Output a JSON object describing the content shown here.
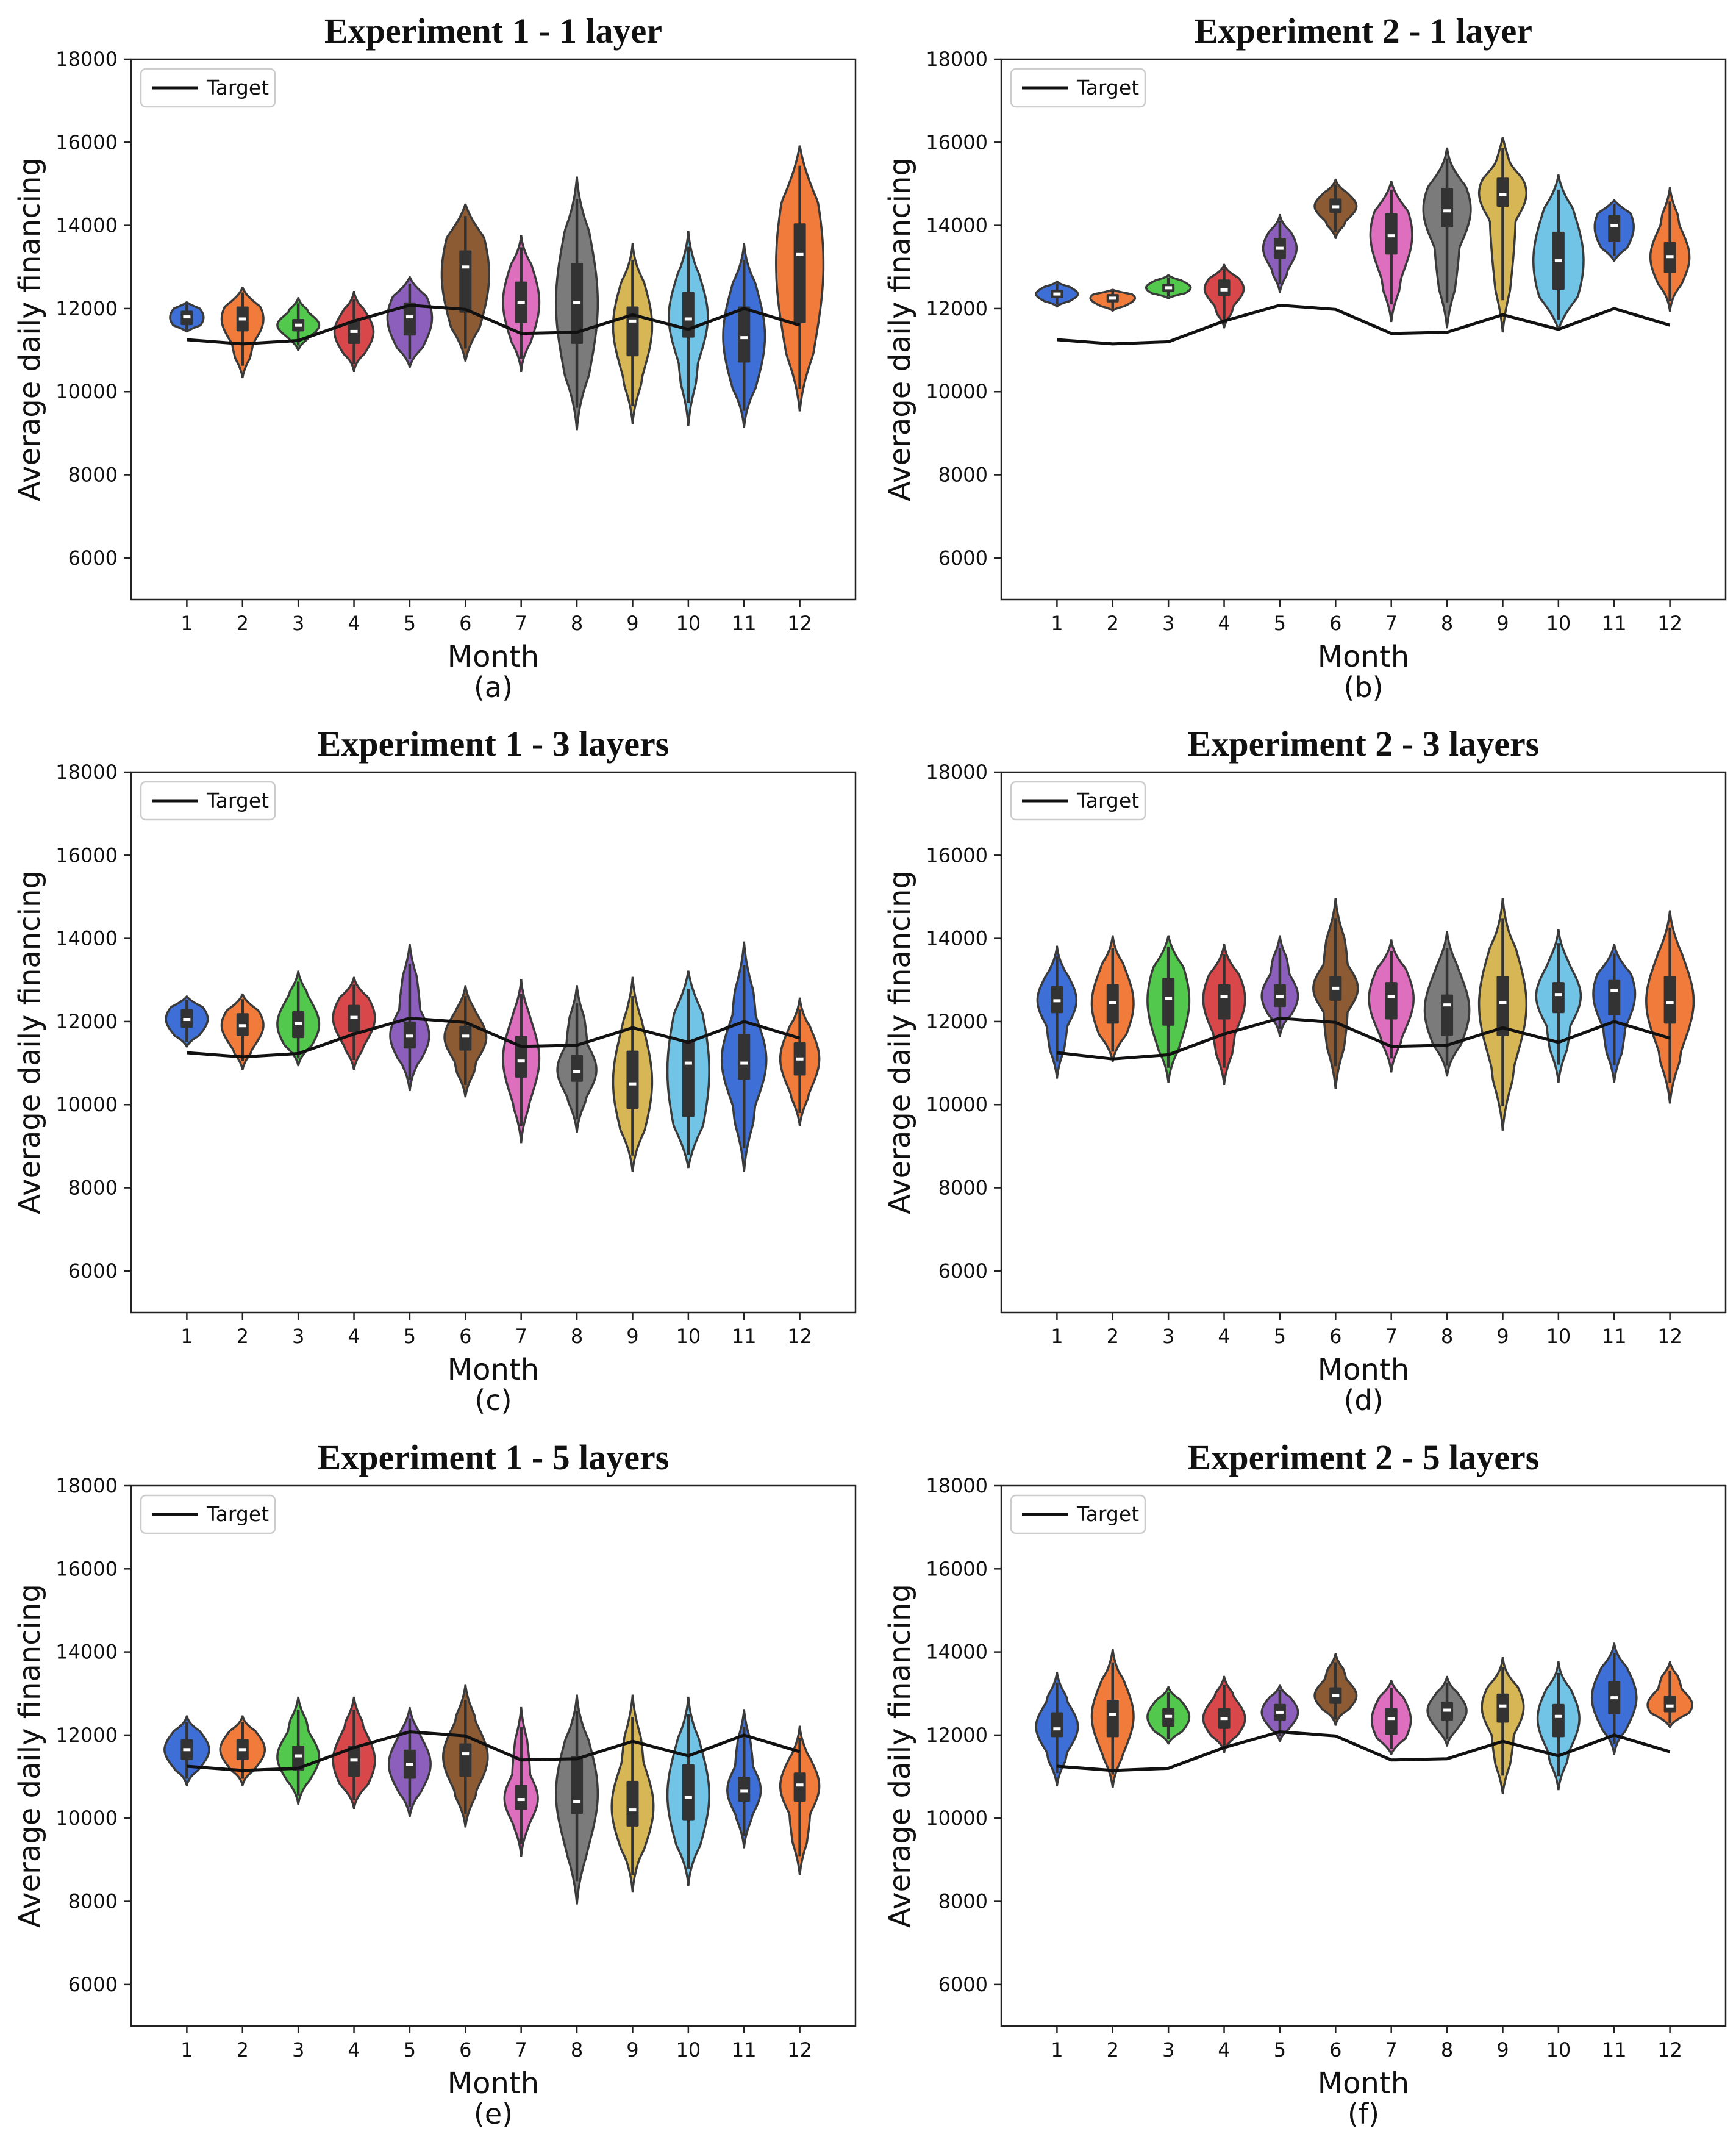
{
  "figure": {
    "months": [
      "1",
      "2",
      "3",
      "4",
      "5",
      "6",
      "7",
      "8",
      "9",
      "10",
      "11",
      "12"
    ],
    "palette": [
      "#3d6fd6",
      "#f07b3a",
      "#52c84c",
      "#d8484b",
      "#8d5fbc",
      "#8c5a33",
      "#dd6fbe",
      "#7b7b7b",
      "#d7b655",
      "#72c4e6",
      "#3d6fd6",
      "#f07b3a"
    ],
    "line_color": "#111111"
  },
  "chart_data": [
    {
      "type": "violin",
      "panel": "(a)",
      "title": "Experiment 1 - 1 layer",
      "xlabel": "Month",
      "ylabel": "Average daily financing",
      "ylim": [
        5000,
        18000
      ],
      "yticks": [
        6000,
        8000,
        10000,
        12000,
        14000,
        16000,
        18000
      ],
      "legend": "Target",
      "target": [
        11250,
        11150,
        11230,
        11700,
        12080,
        11980,
        11400,
        11430,
        11850,
        11500,
        12000,
        11600
      ],
      "violins": [
        {
          "min": 11450,
          "q1": 11600,
          "median": 11800,
          "q3": 11950,
          "max": 12150,
          "width": 0.6
        },
        {
          "min": 10350,
          "q1": 11450,
          "median": 11750,
          "q3": 12050,
          "max": 12500,
          "width": 0.75
        },
        {
          "min": 11000,
          "q1": 11450,
          "median": 11600,
          "q3": 11750,
          "max": 12250,
          "width": 0.75
        },
        {
          "min": 10500,
          "q1": 11150,
          "median": 11450,
          "q3": 11700,
          "max": 12400,
          "width": 0.7
        },
        {
          "min": 10600,
          "q1": 11350,
          "median": 11800,
          "q3": 12150,
          "max": 12750,
          "width": 0.8
        },
        {
          "min": 10750,
          "q1": 11900,
          "median": 13000,
          "q3": 13400,
          "max": 14500,
          "width": 0.85
        },
        {
          "min": 10500,
          "q1": 11650,
          "median": 12150,
          "q3": 12650,
          "max": 13750,
          "width": 0.65
        },
        {
          "min": 9100,
          "q1": 11150,
          "median": 12150,
          "q3": 13100,
          "max": 15150,
          "width": 0.75
        },
        {
          "min": 9250,
          "q1": 10850,
          "median": 11700,
          "q3": 12050,
          "max": 13550,
          "width": 0.7
        },
        {
          "min": 9200,
          "q1": 11300,
          "median": 11750,
          "q3": 12400,
          "max": 13850,
          "width": 0.7
        },
        {
          "min": 9150,
          "q1": 10700,
          "median": 11300,
          "q3": 12050,
          "max": 13550,
          "width": 0.75
        },
        {
          "min": 9550,
          "q1": 11650,
          "median": 13300,
          "q3": 14050,
          "max": 15900,
          "width": 0.85
        }
      ]
    },
    {
      "type": "violin",
      "panel": "(b)",
      "title": "Experiment 2 - 1 layer",
      "xlabel": "Month",
      "ylabel": "Average daily financing",
      "ylim": [
        5000,
        18000
      ],
      "yticks": [
        6000,
        8000,
        10000,
        12000,
        14000,
        16000,
        18000
      ],
      "legend": "Target",
      "target": [
        11250,
        11150,
        11200,
        11700,
        12080,
        11980,
        11400,
        11430,
        11850,
        11500,
        12000,
        11600
      ],
      "violins": [
        {
          "min": 12050,
          "q1": 12250,
          "median": 12350,
          "q3": 12450,
          "max": 12650,
          "width": 0.75
        },
        {
          "min": 11950,
          "q1": 12150,
          "median": 12250,
          "q3": 12350,
          "max": 12450,
          "width": 0.8
        },
        {
          "min": 12250,
          "q1": 12400,
          "median": 12500,
          "q3": 12600,
          "max": 12800,
          "width": 0.8
        },
        {
          "min": 11550,
          "q1": 12300,
          "median": 12450,
          "q3": 12700,
          "max": 13050,
          "width": 0.7
        },
        {
          "min": 12400,
          "q1": 13200,
          "median": 13450,
          "q3": 13700,
          "max": 14250,
          "width": 0.6
        },
        {
          "min": 13700,
          "q1": 14300,
          "median": 14450,
          "q3": 14650,
          "max": 15100,
          "width": 0.75
        },
        {
          "min": 11700,
          "q1": 13300,
          "median": 13750,
          "q3": 14300,
          "max": 15050,
          "width": 0.75
        },
        {
          "min": 11550,
          "q1": 13950,
          "median": 14350,
          "q3": 14900,
          "max": 15850,
          "width": 0.85
        },
        {
          "min": 11450,
          "q1": 14450,
          "median": 14750,
          "q3": 15150,
          "max": 16100,
          "width": 0.85
        },
        {
          "min": 11500,
          "q1": 12450,
          "median": 13150,
          "q3": 13850,
          "max": 15200,
          "width": 0.9
        },
        {
          "min": 13150,
          "q1": 13600,
          "median": 14000,
          "q3": 14250,
          "max": 14600,
          "width": 0.7
        },
        {
          "min": 11950,
          "q1": 12850,
          "median": 13250,
          "q3": 13600,
          "max": 14900,
          "width": 0.7
        }
      ]
    },
    {
      "type": "violin",
      "panel": "(c)",
      "title": "Experiment 1 - 3 layers",
      "xlabel": "Month",
      "ylabel": "Average daily financing",
      "ylim": [
        5000,
        18000
      ],
      "yticks": [
        6000,
        8000,
        10000,
        12000,
        14000,
        16000,
        18000
      ],
      "legend": "Target",
      "target": [
        11250,
        11150,
        11230,
        11700,
        12080,
        11980,
        11400,
        11430,
        11850,
        11500,
        12000,
        11600
      ],
      "violins": [
        {
          "min": 11400,
          "q1": 11850,
          "median": 12050,
          "q3": 12300,
          "max": 12600,
          "width": 0.75
        },
        {
          "min": 10850,
          "q1": 11650,
          "median": 11900,
          "q3": 12200,
          "max": 12650,
          "width": 0.75
        },
        {
          "min": 10950,
          "q1": 11600,
          "median": 11950,
          "q3": 12250,
          "max": 13200,
          "width": 0.75
        },
        {
          "min": 10850,
          "q1": 11750,
          "median": 12100,
          "q3": 12400,
          "max": 13050,
          "width": 0.75
        },
        {
          "min": 10350,
          "q1": 11350,
          "median": 11650,
          "q3": 12000,
          "max": 13850,
          "width": 0.7
        },
        {
          "min": 10200,
          "q1": 11300,
          "median": 11650,
          "q3": 11900,
          "max": 12850,
          "width": 0.75
        },
        {
          "min": 9100,
          "q1": 10650,
          "median": 11050,
          "q3": 11650,
          "max": 13000,
          "width": 0.65
        },
        {
          "min": 9350,
          "q1": 10550,
          "median": 10800,
          "q3": 11200,
          "max": 12850,
          "width": 0.7
        },
        {
          "min": 8400,
          "q1": 9900,
          "median": 10500,
          "q3": 11300,
          "max": 13050,
          "width": 0.7
        },
        {
          "min": 8500,
          "q1": 9700,
          "median": 11000,
          "q3": 11550,
          "max": 13200,
          "width": 0.75
        },
        {
          "min": 8400,
          "q1": 10600,
          "median": 11000,
          "q3": 11700,
          "max": 13900,
          "width": 0.8
        },
        {
          "min": 9500,
          "q1": 10700,
          "median": 11100,
          "q3": 11500,
          "max": 12550,
          "width": 0.7
        }
      ]
    },
    {
      "type": "violin",
      "panel": "(d)",
      "title": "Experiment 2 - 3 layers",
      "xlabel": "Month",
      "ylabel": "Average daily financing",
      "ylim": [
        5000,
        18000
      ],
      "yticks": [
        6000,
        8000,
        10000,
        12000,
        14000,
        16000,
        18000
      ],
      "legend": "Target",
      "target": [
        11250,
        11100,
        11200,
        11700,
        12080,
        11980,
        11400,
        11430,
        11850,
        11500,
        12000,
        11600
      ],
      "violins": [
        {
          "min": 10650,
          "q1": 12200,
          "median": 12500,
          "q3": 12850,
          "max": 13800,
          "width": 0.7
        },
        {
          "min": 11050,
          "q1": 11950,
          "median": 12450,
          "q3": 12900,
          "max": 14050,
          "width": 0.75
        },
        {
          "min": 10550,
          "q1": 11900,
          "median": 12550,
          "q3": 13050,
          "max": 14050,
          "width": 0.75
        },
        {
          "min": 10500,
          "q1": 12050,
          "median": 12600,
          "q3": 12900,
          "max": 13850,
          "width": 0.75
        },
        {
          "min": 11650,
          "q1": 12350,
          "median": 12600,
          "q3": 12900,
          "max": 14050,
          "width": 0.65
        },
        {
          "min": 10400,
          "q1": 12500,
          "median": 12800,
          "q3": 13100,
          "max": 14950,
          "width": 0.8
        },
        {
          "min": 10800,
          "q1": 12050,
          "median": 12600,
          "q3": 12950,
          "max": 13950,
          "width": 0.8
        },
        {
          "min": 10700,
          "q1": 11650,
          "median": 12400,
          "q3": 12650,
          "max": 14150,
          "width": 0.8
        },
        {
          "min": 9400,
          "q1": 11650,
          "median": 12450,
          "q3": 13100,
          "max": 14950,
          "width": 0.85
        },
        {
          "min": 10550,
          "q1": 12200,
          "median": 12650,
          "q3": 12950,
          "max": 14200,
          "width": 0.8
        },
        {
          "min": 10550,
          "q1": 12150,
          "median": 12750,
          "q3": 13000,
          "max": 13850,
          "width": 0.75
        },
        {
          "min": 10050,
          "q1": 11950,
          "median": 12450,
          "q3": 13100,
          "max": 14650,
          "width": 0.85
        }
      ]
    },
    {
      "type": "violin",
      "panel": "(e)",
      "title": "Experiment 1 - 5 layers",
      "xlabel": "Month",
      "ylabel": "Average daily financing",
      "ylim": [
        5000,
        18000
      ],
      "yticks": [
        6000,
        8000,
        10000,
        12000,
        14000,
        16000,
        18000
      ],
      "legend": "Target",
      "target": [
        11250,
        11150,
        11200,
        11700,
        12080,
        11980,
        11400,
        11430,
        11850,
        11500,
        12000,
        11600
      ],
      "violins": [
        {
          "min": 10800,
          "q1": 11400,
          "median": 11650,
          "q3": 11900,
          "max": 12450,
          "width": 0.8
        },
        {
          "min": 10800,
          "q1": 11400,
          "median": 11650,
          "q3": 11900,
          "max": 12450,
          "width": 0.8
        },
        {
          "min": 10350,
          "q1": 11150,
          "median": 11500,
          "q3": 11750,
          "max": 12900,
          "width": 0.75
        },
        {
          "min": 10250,
          "q1": 11000,
          "median": 11400,
          "q3": 11750,
          "max": 12900,
          "width": 0.75
        },
        {
          "min": 10050,
          "q1": 10950,
          "median": 11300,
          "q3": 11650,
          "max": 12650,
          "width": 0.75
        },
        {
          "min": 9800,
          "q1": 11000,
          "median": 11550,
          "q3": 11800,
          "max": 13200,
          "width": 0.8
        },
        {
          "min": 9100,
          "q1": 10200,
          "median": 10450,
          "q3": 10800,
          "max": 12650,
          "width": 0.6
        },
        {
          "min": 7950,
          "q1": 10100,
          "median": 10400,
          "q3": 11500,
          "max": 12950,
          "width": 0.75
        },
        {
          "min": 8250,
          "q1": 9800,
          "median": 10200,
          "q3": 10900,
          "max": 12950,
          "width": 0.75
        },
        {
          "min": 8400,
          "q1": 9950,
          "median": 10500,
          "q3": 11300,
          "max": 12900,
          "width": 0.75
        },
        {
          "min": 9300,
          "q1": 10400,
          "median": 10650,
          "q3": 11000,
          "max": 12600,
          "width": 0.6
        },
        {
          "min": 8650,
          "q1": 10400,
          "median": 10800,
          "q3": 11100,
          "max": 12200,
          "width": 0.7
        }
      ]
    },
    {
      "type": "violin",
      "panel": "(f)",
      "title": "Experiment 2 - 5 layers",
      "xlabel": "Month",
      "ylabel": "Average daily financing",
      "ylim": [
        5000,
        18000
      ],
      "yticks": [
        6000,
        8000,
        10000,
        12000,
        14000,
        16000,
        18000
      ],
      "legend": "Target",
      "target": [
        11250,
        11150,
        11200,
        11700,
        12080,
        11980,
        11400,
        11430,
        11850,
        11500,
        12000,
        11600
      ],
      "violins": [
        {
          "min": 10800,
          "q1": 11950,
          "median": 12150,
          "q3": 12550,
          "max": 13500,
          "width": 0.75
        },
        {
          "min": 10750,
          "q1": 11950,
          "median": 12500,
          "q3": 12850,
          "max": 14050,
          "width": 0.75
        },
        {
          "min": 11800,
          "q1": 12200,
          "median": 12450,
          "q3": 12650,
          "max": 13150,
          "width": 0.75
        },
        {
          "min": 11600,
          "q1": 12150,
          "median": 12400,
          "q3": 12650,
          "max": 13400,
          "width": 0.75
        },
        {
          "min": 11850,
          "q1": 12350,
          "median": 12550,
          "q3": 12750,
          "max": 13200,
          "width": 0.65
        },
        {
          "min": 12250,
          "q1": 12750,
          "median": 12950,
          "q3": 13150,
          "max": 13950,
          "width": 0.75
        },
        {
          "min": 11550,
          "q1": 12000,
          "median": 12400,
          "q3": 12650,
          "max": 13300,
          "width": 0.7
        },
        {
          "min": 11750,
          "q1": 12350,
          "median": 12600,
          "q3": 12800,
          "max": 13400,
          "width": 0.7
        },
        {
          "min": 10600,
          "q1": 12300,
          "median": 12700,
          "q3": 13000,
          "max": 13850,
          "width": 0.75
        },
        {
          "min": 10700,
          "q1": 11950,
          "median": 12450,
          "q3": 12750,
          "max": 13750,
          "width": 0.75
        },
        {
          "min": 11550,
          "q1": 12500,
          "median": 12900,
          "q3": 13300,
          "max": 14200,
          "width": 0.8
        },
        {
          "min": 12200,
          "q1": 12550,
          "median": 12700,
          "q3": 12950,
          "max": 13750,
          "width": 0.8
        }
      ]
    }
  ]
}
